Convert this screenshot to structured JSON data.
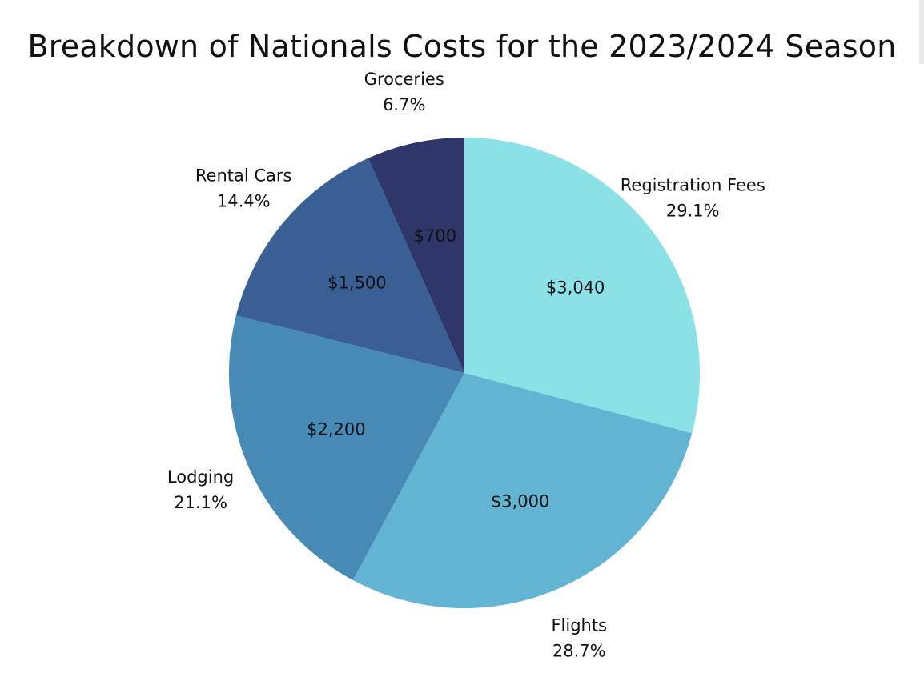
{
  "chart_data": {
    "type": "pie",
    "title": "Breakdown of Nationals Costs for the 2023/2024 Season",
    "slices": [
      {
        "category": "Registration Fees",
        "value": 3040,
        "value_label": "$3,040",
        "percent_label": "29.1%",
        "color": "#8AE1E6"
      },
      {
        "category": "Flights",
        "value": 3000,
        "value_label": "$3,000",
        "percent_label": "28.7%",
        "color": "#62B4D3"
      },
      {
        "category": "Lodging",
        "value": 2200,
        "value_label": "$2,200",
        "percent_label": "21.1%",
        "color": "#478AB6"
      },
      {
        "category": "Rental Cars",
        "value": 1500,
        "value_label": "$1,500",
        "percent_label": "14.4%",
        "color": "#3A5F94"
      },
      {
        "category": "Groceries",
        "value": 700,
        "value_label": "$700",
        "percent_label": "6.7%",
        "color": "#2F3669"
      }
    ],
    "start_angle": "12 o'clock",
    "direction": "clockwise",
    "legend": "none"
  }
}
